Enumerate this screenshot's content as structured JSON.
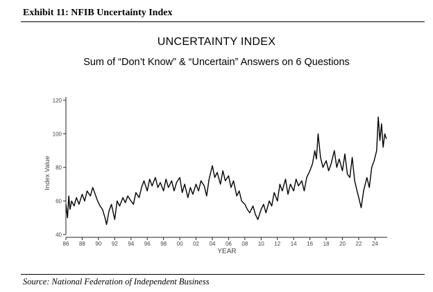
{
  "exhibit": {
    "title": "Exhibit 11: NFIB Uncertainty Index",
    "source": "Source: National Federation of Independent Business"
  },
  "chart_data": {
    "type": "line",
    "title": "UNCERTAINTY INDEX",
    "subtitle": "Sum of “Don’t Know” & “Uncertain” Answers on 6 Questions",
    "xlabel": "YEAR",
    "ylabel": "Index Value",
    "xlim": [
      1986,
      2025.5
    ],
    "ylim": [
      40,
      122
    ],
    "x_ticks": [
      {
        "value": 1986,
        "label": "86"
      },
      {
        "value": 1988,
        "label": "88"
      },
      {
        "value": 1990,
        "label": "90"
      },
      {
        "value": 1992,
        "label": "92"
      },
      {
        "value": 1994,
        "label": "94"
      },
      {
        "value": 1996,
        "label": "96"
      },
      {
        "value": 1998,
        "label": "98"
      },
      {
        "value": 2000,
        "label": "00"
      },
      {
        "value": 2002,
        "label": "02"
      },
      {
        "value": 2004,
        "label": "04"
      },
      {
        "value": 2006,
        "label": "06"
      },
      {
        "value": 2008,
        "label": "08"
      },
      {
        "value": 2010,
        "label": "10"
      },
      {
        "value": 2012,
        "label": "12"
      },
      {
        "value": 2014,
        "label": "14"
      },
      {
        "value": 2016,
        "label": "16"
      },
      {
        "value": 2018,
        "label": "18"
      },
      {
        "value": 2020,
        "label": "20"
      },
      {
        "value": 2022,
        "label": "22"
      },
      {
        "value": 2024,
        "label": "24"
      }
    ],
    "y_ticks": [
      {
        "value": 40,
        "label": "40"
      },
      {
        "value": 60,
        "label": "60"
      },
      {
        "value": 80,
        "label": "80"
      },
      {
        "value": 100,
        "label": "100"
      },
      {
        "value": 120,
        "label": "120"
      }
    ],
    "grid": false,
    "series": [
      {
        "name": "Uncertainty Index",
        "color": "#000000",
        "points": [
          [
            1986.0,
            58
          ],
          [
            1986.2,
            50
          ],
          [
            1986.35,
            63
          ],
          [
            1986.5,
            55
          ],
          [
            1986.7,
            60
          ],
          [
            1987.0,
            57
          ],
          [
            1987.3,
            62
          ],
          [
            1987.6,
            58
          ],
          [
            1988.0,
            64
          ],
          [
            1988.3,
            60
          ],
          [
            1988.6,
            66
          ],
          [
            1989.0,
            63
          ],
          [
            1989.3,
            68
          ],
          [
            1989.6,
            64
          ],
          [
            1989.9,
            60
          ],
          [
            1990.2,
            57
          ],
          [
            1990.5,
            55
          ],
          [
            1990.8,
            50
          ],
          [
            1991.0,
            46
          ],
          [
            1991.3,
            54
          ],
          [
            1991.6,
            58
          ],
          [
            1992.0,
            49
          ],
          [
            1992.3,
            60
          ],
          [
            1992.6,
            57
          ],
          [
            1993.0,
            62
          ],
          [
            1993.3,
            59
          ],
          [
            1993.6,
            63
          ],
          [
            1994.0,
            60
          ],
          [
            1994.3,
            58
          ],
          [
            1994.6,
            65
          ],
          [
            1995.0,
            62
          ],
          [
            1995.3,
            68
          ],
          [
            1995.6,
            72
          ],
          [
            1996.0,
            66
          ],
          [
            1996.3,
            73
          ],
          [
            1996.6,
            69
          ],
          [
            1997.0,
            74
          ],
          [
            1997.3,
            68
          ],
          [
            1997.6,
            71
          ],
          [
            1998.0,
            66
          ],
          [
            1998.3,
            73
          ],
          [
            1998.6,
            68
          ],
          [
            1999.0,
            72
          ],
          [
            1999.3,
            66
          ],
          [
            1999.6,
            71
          ],
          [
            2000.0,
            74
          ],
          [
            2000.3,
            65
          ],
          [
            2000.6,
            70
          ],
          [
            2001.0,
            62
          ],
          [
            2001.3,
            68
          ],
          [
            2001.6,
            64
          ],
          [
            2002.0,
            70
          ],
          [
            2002.3,
            66
          ],
          [
            2002.6,
            72
          ],
          [
            2003.0,
            69
          ],
          [
            2003.3,
            63
          ],
          [
            2003.6,
            73
          ],
          [
            2004.0,
            81
          ],
          [
            2004.3,
            74
          ],
          [
            2004.6,
            77
          ],
          [
            2005.0,
            70
          ],
          [
            2005.3,
            78
          ],
          [
            2005.6,
            72
          ],
          [
            2006.0,
            75
          ],
          [
            2006.3,
            68
          ],
          [
            2006.6,
            72
          ],
          [
            2007.0,
            63
          ],
          [
            2007.3,
            66
          ],
          [
            2007.6,
            60
          ],
          [
            2008.0,
            58
          ],
          [
            2008.3,
            55
          ],
          [
            2008.6,
            53
          ],
          [
            2009.0,
            57
          ],
          [
            2009.3,
            52
          ],
          [
            2009.6,
            49
          ],
          [
            2010.0,
            55
          ],
          [
            2010.3,
            58
          ],
          [
            2010.6,
            53
          ],
          [
            2011.0,
            60
          ],
          [
            2011.3,
            57
          ],
          [
            2011.6,
            65
          ],
          [
            2012.0,
            60
          ],
          [
            2012.3,
            70
          ],
          [
            2012.6,
            66
          ],
          [
            2013.0,
            73
          ],
          [
            2013.3,
            64
          ],
          [
            2013.6,
            70
          ],
          [
            2014.0,
            66
          ],
          [
            2014.3,
            73
          ],
          [
            2014.6,
            69
          ],
          [
            2015.0,
            72
          ],
          [
            2015.3,
            66
          ],
          [
            2015.6,
            74
          ],
          [
            2016.0,
            78
          ],
          [
            2016.3,
            82
          ],
          [
            2016.6,
            90
          ],
          [
            2016.8,
            85
          ],
          [
            2017.0,
            100
          ],
          [
            2017.3,
            86
          ],
          [
            2017.6,
            80
          ],
          [
            2018.0,
            84
          ],
          [
            2018.3,
            78
          ],
          [
            2018.6,
            82
          ],
          [
            2019.0,
            90
          ],
          [
            2019.3,
            80
          ],
          [
            2019.6,
            85
          ],
          [
            2020.0,
            78
          ],
          [
            2020.3,
            88
          ],
          [
            2020.6,
            76
          ],
          [
            2020.9,
            74
          ],
          [
            2021.2,
            86
          ],
          [
            2021.5,
            72
          ],
          [
            2021.8,
            66
          ],
          [
            2022.0,
            62
          ],
          [
            2022.3,
            56
          ],
          [
            2022.6,
            66
          ],
          [
            2023.0,
            74
          ],
          [
            2023.3,
            68
          ],
          [
            2023.6,
            80
          ],
          [
            2023.9,
            84
          ],
          [
            2024.2,
            90
          ],
          [
            2024.4,
            110
          ],
          [
            2024.6,
            96
          ],
          [
            2024.8,
            106
          ],
          [
            2025.0,
            92
          ],
          [
            2025.2,
            100
          ],
          [
            2025.4,
            97
          ]
        ]
      }
    ]
  }
}
